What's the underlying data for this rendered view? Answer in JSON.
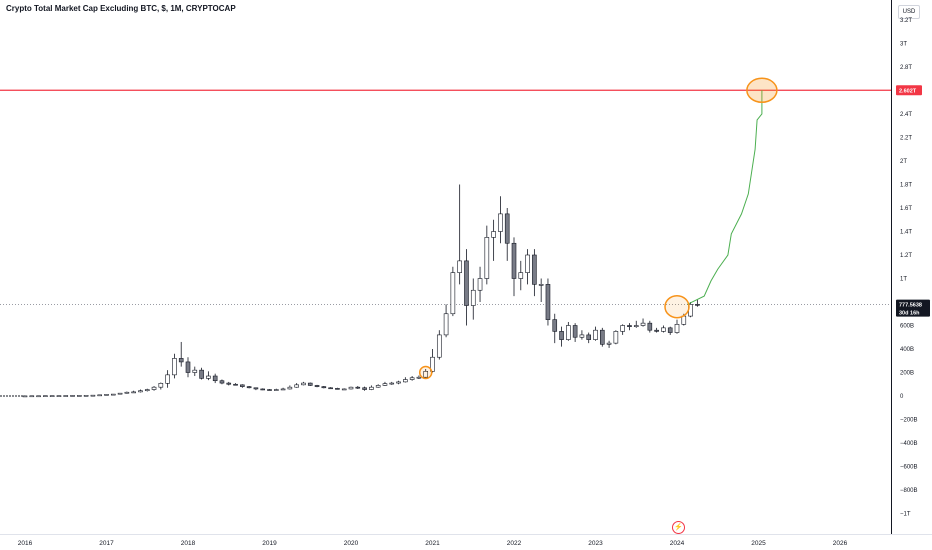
{
  "header": {
    "title": "Crypto Total Market Cap Excluding BTC, $, 1M, CRYPTOCAP",
    "currency": "USD"
  },
  "colors": {
    "up": "#ffffff",
    "down": "#787b86",
    "wick": "#131722",
    "resistance": "#f23645",
    "projection": "#4caf50",
    "highlight": "#f7931a",
    "price_tag": "#131722"
  },
  "icons": {
    "bolt": "lightning-bolt-icon"
  },
  "chart_data": {
    "type": "candlestick",
    "interval": "1M",
    "x_start": "2016-01",
    "y_unit": "USD",
    "y_ticks": [
      {
        "v": -1000,
        "label": "−1T"
      },
      {
        "v": -800,
        "label": "−800B"
      },
      {
        "v": -600,
        "label": "−600B"
      },
      {
        "v": -400,
        "label": "−400B"
      },
      {
        "v": -200,
        "label": "−200B"
      },
      {
        "v": 0,
        "label": "0"
      },
      {
        "v": 200,
        "label": "200B"
      },
      {
        "v": 400,
        "label": "400B"
      },
      {
        "v": 600,
        "label": "600B"
      },
      {
        "v": 1000,
        "label": "1T"
      },
      {
        "v": 1200,
        "label": "1.2T"
      },
      {
        "v": 1400,
        "label": "1.4T"
      },
      {
        "v": 1600,
        "label": "1.6T"
      },
      {
        "v": 1800,
        "label": "1.8T"
      },
      {
        "v": 2000,
        "label": "2T"
      },
      {
        "v": 2200,
        "label": "2.2T"
      },
      {
        "v": 2400,
        "label": "2.4T"
      },
      {
        "v": 2800,
        "label": "2.8T"
      },
      {
        "v": 3000,
        "label": "3T"
      },
      {
        "v": 3200,
        "label": "3.2T"
      }
    ],
    "x_ticks": [
      "2016",
      "2017",
      "2018",
      "2019",
      "2020",
      "2021",
      "2022",
      "2023",
      "2024",
      "2025",
      "2026"
    ],
    "resistance": {
      "value": 2602,
      "label": "2.602T"
    },
    "current_price": {
      "value": 777.5638,
      "label": "777.5638",
      "countdown": "30d 16h"
    },
    "projection": [
      {
        "t": 97.5,
        "v": 780
      },
      {
        "t": 100,
        "v": 850
      },
      {
        "t": 101,
        "v": 980
      },
      {
        "t": 102,
        "v": 1080
      },
      {
        "t": 103.5,
        "v": 1200
      },
      {
        "t": 104,
        "v": 1380
      },
      {
        "t": 105.5,
        "v": 1550
      },
      {
        "t": 106.5,
        "v": 1720
      },
      {
        "t": 107.5,
        "v": 2100
      },
      {
        "t": 107.8,
        "v": 2350
      },
      {
        "t": 108.5,
        "v": 2400
      },
      {
        "t": 108.5,
        "v": 2602
      }
    ],
    "highlights": [
      {
        "t": 59,
        "v": 200
      },
      {
        "t": 96,
        "v": 760
      },
      {
        "t": 108.5,
        "v": 2602
      }
    ],
    "ohlc": [
      [
        1,
        1,
        0,
        2
      ],
      [
        2,
        2,
        1,
        2
      ],
      [
        2,
        2,
        2,
        2
      ],
      [
        2,
        3,
        2,
        3
      ],
      [
        3,
        3,
        2,
        3
      ],
      [
        3,
        3,
        3,
        3
      ],
      [
        3,
        4,
        3,
        4
      ],
      [
        4,
        5,
        3,
        6
      ],
      [
        5,
        5,
        4,
        6
      ],
      [
        5,
        6,
        5,
        6
      ],
      [
        6,
        7,
        5,
        8
      ],
      [
        7,
        10,
        6,
        11
      ],
      [
        10,
        14,
        9,
        15
      ],
      [
        14,
        16,
        12,
        17
      ],
      [
        16,
        24,
        14,
        26
      ],
      [
        24,
        32,
        20,
        38
      ],
      [
        32,
        35,
        26,
        45
      ],
      [
        35,
        45,
        30,
        55
      ],
      [
        45,
        55,
        38,
        62
      ],
      [
        55,
        75,
        45,
        85
      ],
      [
        75,
        108,
        55,
        115
      ],
      [
        108,
        180,
        70,
        220
      ],
      [
        180,
        320,
        150,
        360
      ],
      [
        320,
        290,
        250,
        460
      ],
      [
        290,
        200,
        160,
        330
      ],
      [
        200,
        220,
        170,
        250
      ],
      [
        220,
        150,
        140,
        240
      ],
      [
        150,
        170,
        135,
        210
      ],
      [
        170,
        130,
        110,
        190
      ],
      [
        130,
        110,
        100,
        140
      ],
      [
        110,
        100,
        90,
        120
      ],
      [
        100,
        95,
        90,
        110
      ],
      [
        95,
        80,
        70,
        100
      ],
      [
        80,
        70,
        65,
        85
      ],
      [
        70,
        60,
        50,
        72
      ],
      [
        60,
        55,
        50,
        65
      ],
      [
        55,
        52,
        48,
        60
      ],
      [
        52,
        55,
        50,
        62
      ],
      [
        55,
        60,
        52,
        70
      ],
      [
        60,
        75,
        55,
        90
      ],
      [
        75,
        95,
        70,
        110
      ],
      [
        95,
        110,
        90,
        120
      ],
      [
        110,
        90,
        85,
        115
      ],
      [
        90,
        80,
        75,
        95
      ],
      [
        80,
        70,
        65,
        85
      ],
      [
        70,
        65,
        60,
        75
      ],
      [
        65,
        60,
        55,
        70
      ],
      [
        60,
        60,
        55,
        65
      ],
      [
        60,
        75,
        55,
        80
      ],
      [
        75,
        70,
        60,
        85
      ],
      [
        70,
        55,
        45,
        80
      ],
      [
        55,
        75,
        50,
        90
      ],
      [
        75,
        90,
        70,
        100
      ],
      [
        90,
        105,
        85,
        120
      ],
      [
        105,
        110,
        95,
        120
      ],
      [
        110,
        120,
        100,
        130
      ],
      [
        120,
        140,
        115,
        160
      ],
      [
        140,
        155,
        130,
        170
      ],
      [
        155,
        160,
        145,
        175
      ],
      [
        160,
        210,
        150,
        230
      ],
      [
        210,
        330,
        200,
        400
      ],
      [
        330,
        520,
        310,
        560
      ],
      [
        520,
        700,
        500,
        780
      ],
      [
        700,
        1050,
        680,
        1100
      ],
      [
        1050,
        1150,
        950,
        1800
      ],
      [
        1150,
        770,
        600,
        1250
      ],
      [
        770,
        900,
        650,
        1000
      ],
      [
        900,
        1000,
        800,
        1100
      ],
      [
        1000,
        1350,
        950,
        1450
      ],
      [
        1350,
        1400,
        1150,
        1500
      ],
      [
        1400,
        1550,
        1300,
        1700
      ],
      [
        1550,
        1300,
        1150,
        1600
      ],
      [
        1300,
        1000,
        850,
        1350
      ],
      [
        1000,
        1050,
        900,
        1150
      ],
      [
        1050,
        1200,
        950,
        1250
      ],
      [
        1200,
        950,
        850,
        1250
      ],
      [
        950,
        950,
        800,
        1000
      ],
      [
        950,
        650,
        600,
        1000
      ],
      [
        650,
        550,
        450,
        700
      ],
      [
        550,
        480,
        420,
        590
      ],
      [
        480,
        600,
        470,
        630
      ],
      [
        600,
        500,
        460,
        620
      ],
      [
        500,
        520,
        480,
        560
      ],
      [
        520,
        480,
        450,
        540
      ],
      [
        480,
        560,
        470,
        590
      ],
      [
        560,
        440,
        420,
        580
      ],
      [
        440,
        450,
        410,
        470
      ],
      [
        450,
        550,
        440,
        560
      ],
      [
        550,
        600,
        520,
        610
      ],
      [
        600,
        590,
        560,
        620
      ],
      [
        590,
        600,
        580,
        640
      ],
      [
        600,
        620,
        590,
        660
      ],
      [
        620,
        560,
        540,
        640
      ],
      [
        560,
        550,
        540,
        580
      ],
      [
        550,
        580,
        540,
        600
      ],
      [
        580,
        540,
        520,
        590
      ],
      [
        540,
        610,
        530,
        650
      ],
      [
        610,
        680,
        600,
        700
      ],
      [
        680,
        780,
        670,
        800
      ],
      [
        780,
        777.5638,
        760,
        820
      ]
    ]
  }
}
